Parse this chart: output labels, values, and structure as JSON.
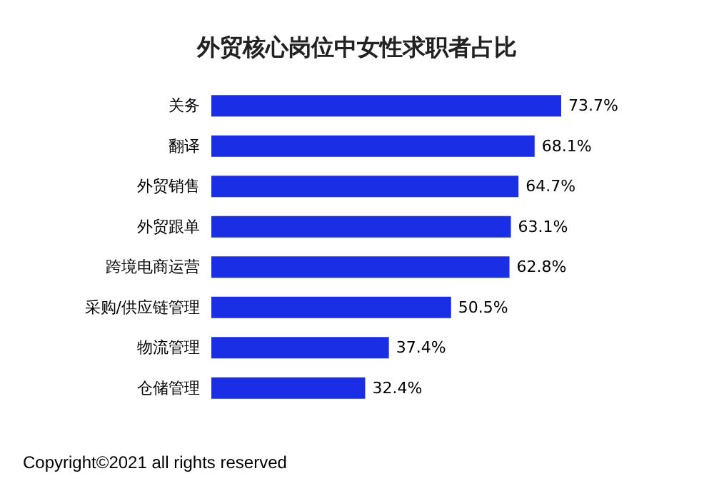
{
  "chart_data": {
    "type": "bar",
    "orientation": "horizontal",
    "title": "外贸核心岗位中女性求职者占比",
    "categories": [
      "关务",
      "翻译",
      "外贸销售",
      "外贸跟单",
      "跨境电商运营",
      "采购/供应链管理",
      "物流管理",
      "仓储管理"
    ],
    "series": [
      {
        "color": "#1a2ee6",
        "values": [
          73.7,
          68.1,
          64.7,
          63.1,
          62.8,
          50.5,
          37.4,
          32.4
        ],
        "value_labels": [
          "73.7%",
          "68.1%",
          "64.7%",
          "63.1%",
          "62.8%",
          "50.5%",
          "37.4%",
          "32.4%"
        ]
      }
    ],
    "annotations": [
      "Copyright©2021 all rights reserved"
    ]
  }
}
